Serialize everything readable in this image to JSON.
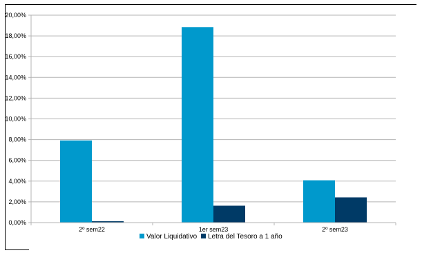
{
  "chart_data": {
    "type": "bar",
    "categories": [
      "2º sem22",
      "1er sem23",
      "2º sem23"
    ],
    "series": [
      {
        "name": "Valor Liquidativo",
        "values": [
          7.92,
          18.85,
          4.08
        ],
        "color": "#0099CC"
      },
      {
        "name": "Letra del Tesoro a 1 año",
        "values": [
          0.13,
          1.63,
          2.43
        ],
        "color": "#003A66"
      }
    ],
    "ylim": [
      0,
      20
    ],
    "ytick_step": 2,
    "ytick_labels": [
      "0,00%",
      "2,00%",
      "4,00%",
      "6,00%",
      "8,00%",
      "10,00%",
      "12,00%",
      "14,00%",
      "16,00%",
      "18,00%",
      "20,00%"
    ],
    "grid": true,
    "legend": "bottom-center"
  }
}
